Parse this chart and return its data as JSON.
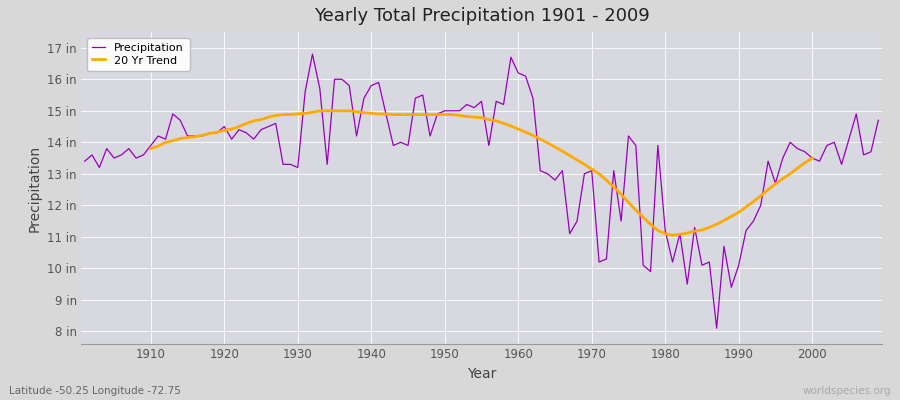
{
  "title": "Yearly Total Precipitation 1901 - 2009",
  "xlabel": "Year",
  "ylabel": "Precipitation",
  "x_start": 1901,
  "x_end": 2009,
  "y_ticks": [
    8,
    9,
    10,
    11,
    12,
    13,
    14,
    15,
    16,
    17
  ],
  "y_labels": [
    "8 in",
    "9 in",
    "10 in",
    "11 in",
    "12 in",
    "13 in",
    "14 in",
    "15 in",
    "16 in",
    "17 in"
  ],
  "ylim": [
    7.6,
    17.5
  ],
  "xlim": [
    1900.5,
    2009.5
  ],
  "x_ticks": [
    1910,
    1920,
    1930,
    1940,
    1950,
    1960,
    1970,
    1980,
    1990,
    2000
  ],
  "precip_color": "#9900bb",
  "trend_color": "#ffaa00",
  "fig_bg_color": "#d8d8d8",
  "plot_bg_color": "#d8d8e0",
  "grid_color": "#ffffff",
  "subtitle": "Latitude -50.25 Longitude -72.75",
  "watermark": "worldspecies.org",
  "precipitation": [
    13.4,
    13.6,
    13.2,
    13.8,
    13.5,
    13.6,
    13.8,
    13.5,
    13.6,
    13.9,
    14.2,
    14.1,
    14.9,
    14.7,
    14.2,
    14.2,
    14.2,
    14.3,
    14.3,
    14.5,
    14.1,
    14.4,
    14.3,
    14.1,
    14.4,
    14.5,
    14.6,
    13.3,
    13.3,
    13.2,
    15.6,
    16.8,
    15.7,
    13.3,
    16.0,
    16.0,
    15.8,
    14.2,
    15.4,
    15.8,
    15.9,
    14.9,
    13.9,
    14.0,
    13.9,
    15.4,
    15.5,
    14.2,
    14.9,
    15.0,
    15.0,
    15.0,
    15.2,
    15.1,
    15.3,
    13.9,
    15.3,
    15.2,
    16.7,
    16.2,
    16.1,
    15.4,
    13.1,
    13.0,
    12.8,
    13.1,
    11.1,
    11.5,
    13.0,
    13.1,
    10.2,
    10.3,
    13.1,
    11.5,
    14.2,
    13.9,
    10.1,
    9.9,
    13.9,
    11.2,
    10.2,
    11.1,
    9.5,
    11.3,
    10.1,
    10.2,
    8.1,
    10.7,
    9.4,
    10.1,
    11.2,
    11.5,
    12.0,
    13.4,
    12.7,
    13.5,
    14.0,
    13.8,
    13.7,
    13.5,
    13.4,
    13.9,
    14.0,
    13.3,
    14.1,
    14.9,
    13.6,
    13.7,
    14.7
  ],
  "trend_20yr": [
    null,
    null,
    null,
    null,
    null,
    null,
    null,
    null,
    null,
    13.8,
    13.88,
    14.0,
    14.05,
    14.12,
    14.15,
    14.18,
    14.22,
    14.28,
    14.32,
    14.38,
    14.42,
    14.5,
    14.6,
    14.68,
    14.72,
    14.8,
    14.85,
    14.88,
    14.88,
    14.9,
    14.92,
    14.95,
    15.0,
    15.0,
    15.0,
    15.0,
    15.0,
    14.97,
    14.94,
    14.92,
    14.9,
    14.9,
    14.88,
    14.88,
    14.88,
    14.88,
    14.88,
    14.88,
    14.88,
    14.88,
    14.88,
    14.85,
    14.82,
    14.8,
    14.78,
    14.72,
    14.68,
    14.6,
    14.52,
    14.42,
    14.32,
    14.22,
    14.1,
    13.98,
    13.85,
    13.72,
    13.58,
    13.44,
    13.3,
    13.15,
    13.0,
    12.8,
    12.58,
    12.35,
    12.1,
    11.85,
    11.62,
    11.4,
    11.2,
    11.1,
    11.05,
    11.08,
    11.12,
    11.18,
    11.22,
    11.3,
    11.4,
    11.52,
    11.65,
    11.78,
    11.95,
    12.12,
    12.3,
    12.5,
    12.68,
    12.85,
    13.0,
    13.18,
    13.35,
    13.5,
    null,
    null,
    null,
    null,
    null,
    null,
    null,
    null,
    null
  ]
}
